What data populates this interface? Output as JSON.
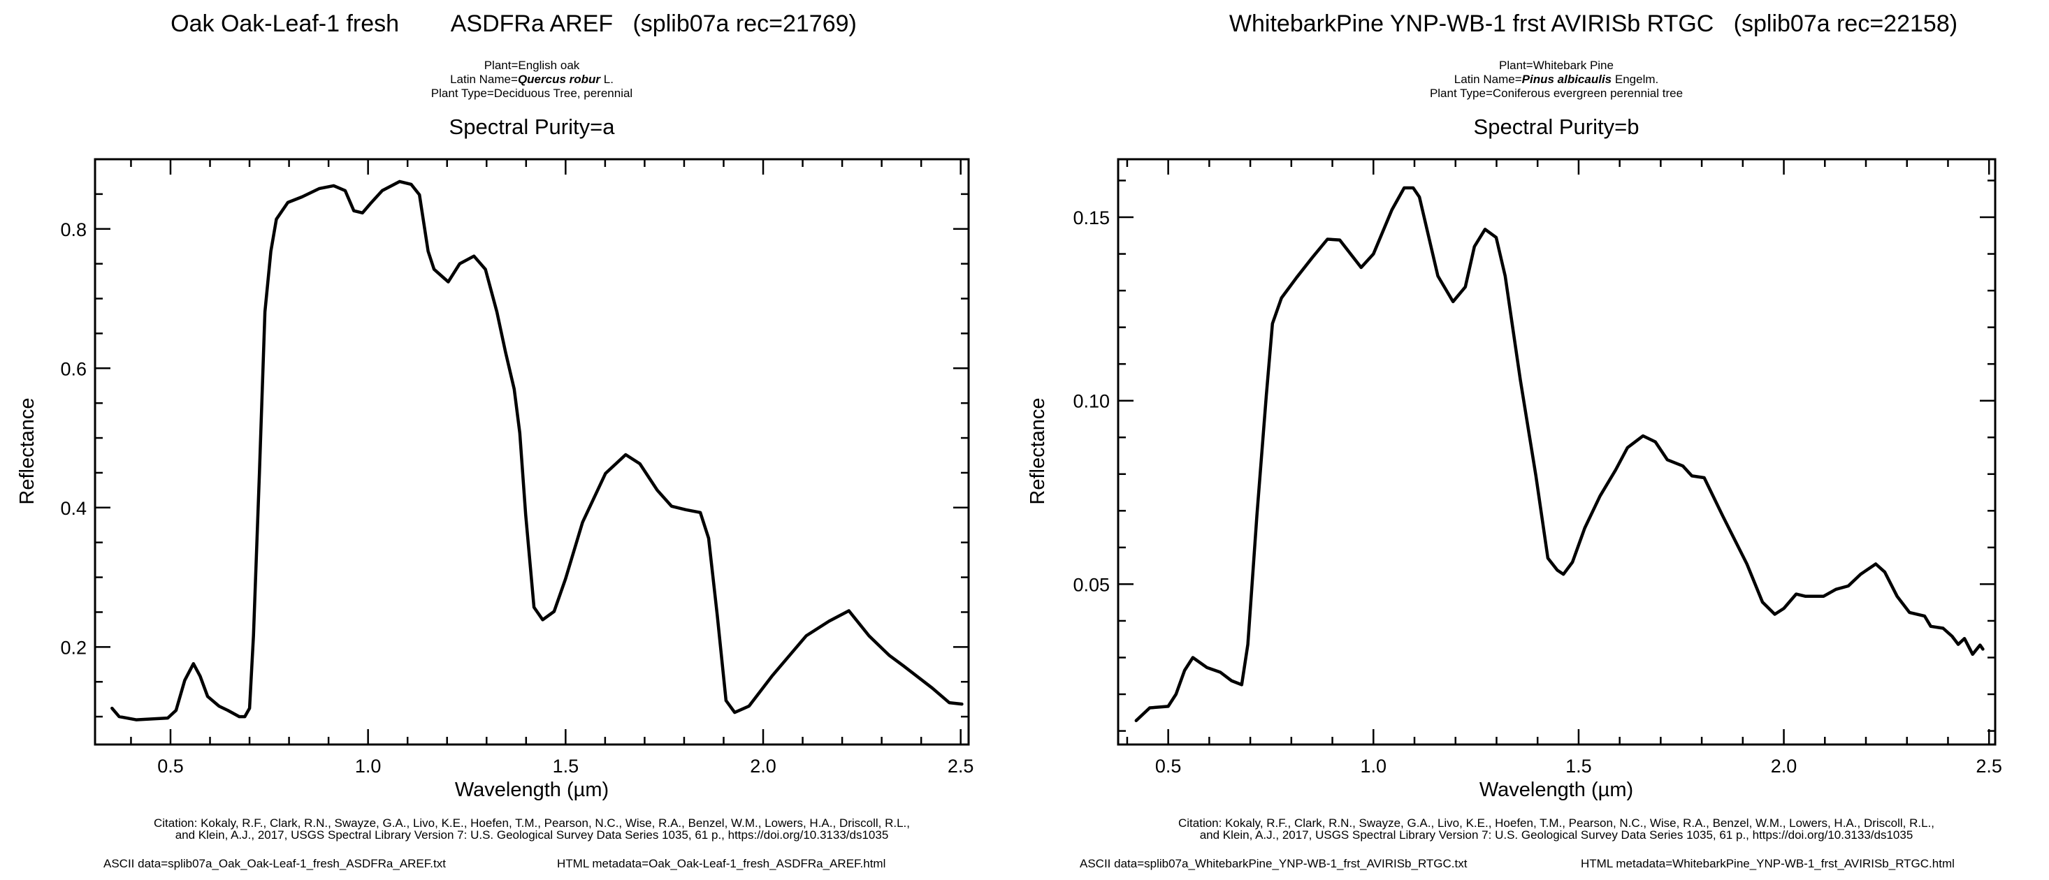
{
  "chart_data": [
    {
      "type": "line",
      "title": "Oak Oak-Leaf-1 fresh        ASDFRa AREF   (splib07a rec=21769)",
      "meta": {
        "plant": "Plant=English oak",
        "latin_prefix": "Latin Name=",
        "latin_italic": "Quercus robur",
        "latin_suffix": " L.",
        "plant_type": "Plant Type=Deciduous Tree, perennial"
      },
      "subtitle": "Spectral Purity=a",
      "xlabel": "Wavelength (µm)",
      "ylabel": "Reflectance",
      "xlim": [
        0.309,
        2.52
      ],
      "ylim": [
        0.06,
        0.9
      ],
      "xticks": [
        0.5,
        1.0,
        1.5,
        2.0,
        2.5
      ],
      "xtick_labels": [
        "0.5",
        "1.0",
        "1.5",
        "2.0",
        "2.5"
      ],
      "x_minor_step": 0.1,
      "yticks": [
        0.2,
        0.4,
        0.6,
        0.8
      ],
      "ytick_labels": [
        "0.2",
        "0.4",
        "0.6",
        "0.8"
      ],
      "y_minor_step": 0.05,
      "grid": false,
      "series": [
        {
          "name": "Oak Oak-Leaf-1 fresh",
          "x": [
            0.352,
            0.37,
            0.413,
            0.493,
            0.514,
            0.536,
            0.558,
            0.575,
            0.594,
            0.623,
            0.645,
            0.674,
            0.688,
            0.7,
            0.71,
            0.725,
            0.739,
            0.754,
            0.768,
            0.797,
            0.833,
            0.877,
            0.913,
            0.942,
            0.964,
            0.986,
            1.007,
            1.036,
            1.08,
            1.109,
            1.13,
            1.152,
            1.167,
            1.203,
            1.232,
            1.268,
            1.297,
            1.326,
            1.348,
            1.37,
            1.384,
            1.399,
            1.42,
            1.442,
            1.471,
            1.5,
            1.543,
            1.601,
            1.652,
            1.688,
            1.732,
            1.768,
            1.804,
            1.841,
            1.862,
            1.884,
            1.906,
            1.928,
            1.964,
            2.022,
            2.109,
            2.167,
            2.217,
            2.268,
            2.319,
            2.355,
            2.428,
            2.471,
            2.503
          ],
          "y": [
            0.112,
            0.1,
            0.0955,
            0.098,
            0.109,
            0.152,
            0.176,
            0.158,
            0.129,
            0.115,
            0.109,
            0.1,
            0.1,
            0.112,
            0.216,
            0.449,
            0.681,
            0.768,
            0.814,
            0.838,
            0.846,
            0.858,
            0.862,
            0.855,
            0.826,
            0.823,
            0.837,
            0.855,
            0.868,
            0.864,
            0.849,
            0.768,
            0.742,
            0.724,
            0.75,
            0.761,
            0.742,
            0.681,
            0.623,
            0.57,
            0.507,
            0.39,
            0.257,
            0.239,
            0.251,
            0.298,
            0.379,
            0.449,
            0.476,
            0.463,
            0.425,
            0.402,
            0.397,
            0.393,
            0.356,
            0.245,
            0.123,
            0.106,
            0.115,
            0.158,
            0.216,
            0.237,
            0.252,
            0.216,
            0.188,
            0.173,
            0.141,
            0.12,
            0.118
          ]
        }
      ],
      "citation": [
        "Citation: Kokaly, R.F., Clark, R.N., Swayze, G.A., Livo, K.E., Hoefen, T.M., Pearson, N.C., Wise, R.A., Benzel, W.M., Lowers, H.A., Driscoll, R.L.,",
        "and Klein, A.J., 2017, USGS Spectral Library Version 7: U.S. Geological Survey Data Series 1035, 61 p., https://doi.org/10.3133/ds1035"
      ],
      "ascii_data": "ASCII data=splib07a_Oak_Oak-Leaf-1_fresh_ASDFRa_AREF.txt",
      "html_metadata": "HTML metadata=Oak_Oak-Leaf-1_fresh_ASDFRa_AREF.html"
    },
    {
      "type": "line",
      "title": "WhitebarkPine YNP-WB-1 frst AVIRISb RTGC   (splib07a rec=22158)",
      "meta": {
        "plant": "Plant=Whitebark Pine",
        "latin_prefix": "Latin Name=",
        "latin_italic": "Pinus albicaulis",
        "latin_suffix": " Engelm.",
        "plant_type": "Plant Type=Coniferous evergreen perennial tree"
      },
      "subtitle": "Spectral Purity=b",
      "xlabel": "Wavelength (µm)",
      "ylabel": "Reflectance",
      "xlim": [
        0.378,
        2.515
      ],
      "ylim": [
        0.0063,
        0.1658
      ],
      "xticks": [
        0.5,
        1.0,
        1.5,
        2.0,
        2.5
      ],
      "xtick_labels": [
        "0.5",
        "1.0",
        "1.5",
        "2.0",
        "2.5"
      ],
      "x_minor_step": 0.1,
      "yticks": [
        0.05,
        0.1,
        0.15
      ],
      "ytick_labels": [
        "0.05",
        "0.10",
        "0.15"
      ],
      "y_minor_step": 0.01,
      "grid": false,
      "series": [
        {
          "name": "WhitebarkPine YNP-WB-1 frst",
          "x": [
            0.422,
            0.455,
            0.5,
            0.519,
            0.54,
            0.56,
            0.594,
            0.627,
            0.654,
            0.679,
            0.694,
            0.716,
            0.739,
            0.754,
            0.776,
            0.813,
            0.851,
            0.888,
            0.918,
            0.97,
            1.0,
            1.045,
            1.075,
            1.097,
            1.112,
            1.157,
            1.194,
            1.224,
            1.246,
            1.272,
            1.299,
            1.321,
            1.358,
            1.396,
            1.425,
            1.448,
            1.463,
            1.485,
            1.515,
            1.552,
            1.59,
            1.619,
            1.657,
            1.687,
            1.716,
            1.754,
            1.776,
            1.806,
            1.851,
            1.91,
            1.948,
            1.978,
            2.0,
            2.03,
            2.052,
            2.097,
            2.127,
            2.157,
            2.187,
            2.224,
            2.246,
            2.276,
            2.306,
            2.343,
            2.358,
            2.388,
            2.41,
            2.425,
            2.44,
            2.46,
            2.478,
            2.485
          ],
          "y": [
            0.0128,
            0.0163,
            0.0167,
            0.02,
            0.0265,
            0.03,
            0.0273,
            0.026,
            0.0237,
            0.0226,
            0.0336,
            0.0686,
            0.1014,
            0.121,
            0.128,
            0.1336,
            0.139,
            0.144,
            0.1438,
            0.1363,
            0.14,
            0.152,
            0.158,
            0.158,
            0.1555,
            0.134,
            0.127,
            0.131,
            0.142,
            0.1467,
            0.1445,
            0.134,
            0.1057,
            0.0795,
            0.0571,
            0.0538,
            0.0527,
            0.056,
            0.0653,
            0.074,
            0.0811,
            0.0872,
            0.0904,
            0.0888,
            0.0839,
            0.0822,
            0.0795,
            0.079,
            0.0686,
            0.0555,
            0.0451,
            0.0418,
            0.0434,
            0.0473,
            0.0467,
            0.0467,
            0.0486,
            0.0495,
            0.0527,
            0.0555,
            0.0533,
            0.0467,
            0.0423,
            0.0413,
            0.0385,
            0.038,
            0.0358,
            0.0336,
            0.0352,
            0.0309,
            0.0334,
            0.0323
          ]
        }
      ],
      "citation": [
        "Citation: Kokaly, R.F., Clark, R.N., Swayze, G.A., Livo, K.E., Hoefen, T.M., Pearson, N.C., Wise, R.A., Benzel, W.M., Lowers, H.A., Driscoll, R.L.,",
        "and Klein, A.J., 2017, USGS Spectral Library Version 7: U.S. Geological Survey Data Series 1035, 61 p., https://doi.org/10.3133/ds1035"
      ],
      "ascii_data": "ASCII data=splib07a_WhitebarkPine_YNP-WB-1_frst_AVIRISb_RTGC.txt",
      "html_metadata": "HTML metadata=WhitebarkPine_YNP-WB-1_frst_AVIRISb_RTGC.html"
    }
  ]
}
